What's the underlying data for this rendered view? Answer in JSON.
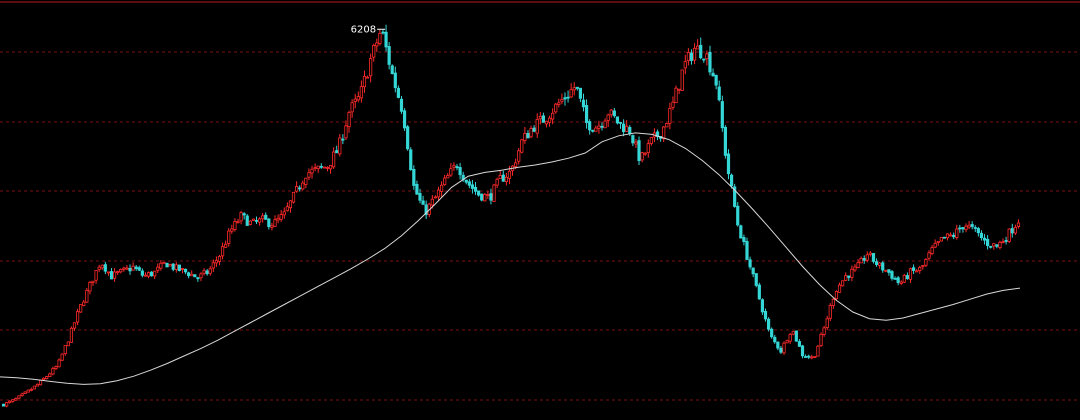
{
  "chart_data": {
    "type": "candlestick",
    "title": "",
    "xlabel": "",
    "ylabel": "",
    "ylim": [
      1000,
      6600
    ],
    "grid": true,
    "legend": "none",
    "annotation": {
      "text": "6208",
      "value": 6208
    },
    "colors": {
      "background": "#000000",
      "grid": "#7a1010",
      "up": "#ff2a2a",
      "down": "#35d6d6",
      "moving_average": "#d8d8d8",
      "label": "#ffffff"
    },
    "close_path": [
      1180,
      1240,
      1330,
      1430,
      1560,
      1700,
      2050,
      2450,
      2780,
      3100,
      2900,
      2960,
      3020,
      2900,
      2950,
      3080,
      3000,
      2950,
      2880,
      2960,
      3180,
      3500,
      3700,
      3600,
      3650,
      3600,
      3720,
      4000,
      4280,
      4320,
      4380,
      4600,
      5100,
      5300,
      5800,
      6208,
      5600,
      5100,
      4100,
      3750,
      3950,
      4200,
      4400,
      4150,
      4000,
      3950,
      4200,
      4300,
      4700,
      4900,
      5000,
      5150,
      5300,
      5450,
      4950,
      4900,
      5100,
      4950,
      4850,
      4450,
      4700,
      4850,
      5200,
      5700,
      5950,
      5900,
      5500,
      4400,
      3600,
      3100,
      2600,
      2100,
      1900,
      2200,
      1850,
      1800,
      2200,
      2700,
      2900,
      3000,
      3200,
      3050,
      2950,
      2800,
      2950,
      3000,
      3250,
      3400,
      3450,
      3600,
      3500,
      3350,
      3300,
      3450,
      3650
    ],
    "ma_values": [
      1550,
      1540,
      1520,
      1490,
      1465,
      1450,
      1460,
      1500,
      1560,
      1640,
      1730,
      1830,
      1930,
      2040,
      2160,
      2280,
      2400,
      2520,
      2640,
      2760,
      2880,
      3000,
      3130,
      3270,
      3440,
      3640,
      3860,
      4090,
      4240,
      4290,
      4320,
      4360,
      4390,
      4430,
      4480,
      4550,
      4700,
      4780,
      4820,
      4800,
      4730,
      4610,
      4450,
      4260,
      4040,
      3800,
      3550,
      3290,
      3030,
      2790,
      2580,
      2420,
      2330,
      2310,
      2340,
      2400,
      2460,
      2520,
      2590,
      2660,
      2710,
      2740
    ]
  }
}
